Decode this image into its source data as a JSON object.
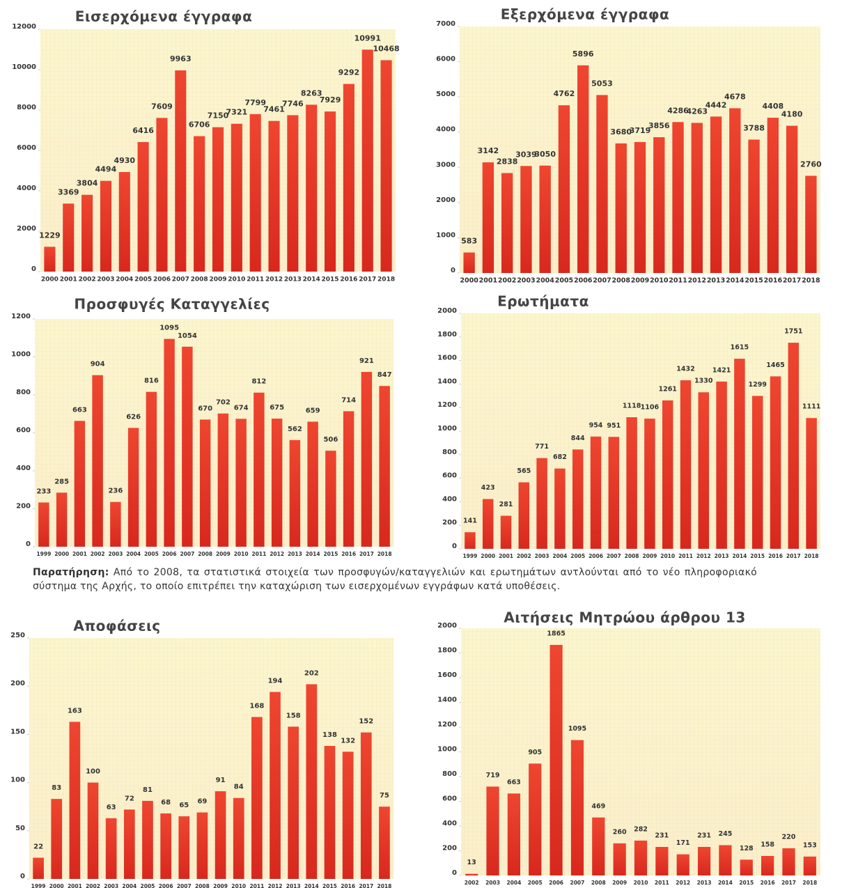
{
  "chart_data": [
    {
      "type": "bar",
      "title": "Εισερχόμενα έγγραφα",
      "color": "#e8392a",
      "categories": [
        "2000",
        "2001",
        "2002",
        "2003",
        "2004",
        "2005",
        "2006",
        "2007",
        "2008",
        "2009",
        "2010",
        "2011",
        "2012",
        "2013",
        "2014",
        "2015",
        "2016",
        "2017",
        "2018"
      ],
      "values": [
        1229,
        3369,
        3804,
        4494,
        4930,
        6416,
        7609,
        9963,
        6706,
        7150,
        7321,
        7799,
        7461,
        7746,
        8263,
        7929,
        9292,
        10991,
        10468
      ],
      "ylim": [
        0,
        12000
      ],
      "yticks": [
        0,
        2000,
        4000,
        6000,
        8000,
        10000,
        12000
      ]
    },
    {
      "type": "bar",
      "title": "Εξερχόμενα έγγραφα",
      "color": "#e8392a",
      "categories": [
        "2000",
        "2001",
        "2002",
        "2003",
        "2004",
        "2005",
        "2006",
        "2007",
        "2008",
        "2009",
        "2010",
        "2011",
        "2012",
        "2013",
        "2014",
        "2015",
        "2016",
        "2017",
        "2018"
      ],
      "values": [
        583,
        3142,
        2838,
        3039,
        3050,
        4762,
        5896,
        5053,
        3680,
        3719,
        3856,
        4286,
        4263,
        4442,
        4678,
        3788,
        4408,
        4180,
        2760
      ],
      "ylim": [
        0,
        7000
      ],
      "yticks": [
        0,
        1000,
        2000,
        3000,
        4000,
        5000,
        6000,
        7000
      ]
    },
    {
      "type": "bar",
      "title": "Προσφυγές Καταγγελίες",
      "color": "#e8392a",
      "categories": [
        "1999",
        "2000",
        "2001",
        "2002",
        "2003",
        "2004",
        "2005",
        "2006",
        "2007",
        "2008",
        "2009",
        "2010",
        "2011",
        "2012",
        "2013",
        "2014",
        "2015",
        "2016",
        "2017",
        "2018"
      ],
      "values": [
        233,
        285,
        663,
        904,
        236,
        626,
        816,
        1095,
        1054,
        670,
        702,
        674,
        812,
        675,
        562,
        659,
        506,
        714,
        921,
        847
      ],
      "ylim": [
        0,
        1200
      ],
      "yticks": [
        0,
        200,
        400,
        600,
        800,
        1000,
        1200
      ]
    },
    {
      "type": "bar",
      "title": "Ερωτήματα",
      "color": "#e8392a",
      "categories": [
        "1999",
        "2000",
        "2001",
        "2002",
        "2003",
        "2004",
        "2005",
        "2006",
        "2007",
        "2008",
        "2009",
        "2010",
        "2011",
        "2012",
        "2013",
        "2014",
        "2015",
        "2016",
        "2017",
        "2018"
      ],
      "values": [
        141,
        423,
        281,
        565,
        771,
        682,
        844,
        954,
        951,
        1118,
        1106,
        1261,
        1432,
        1330,
        1421,
        1615,
        1299,
        1465,
        1751,
        1111
      ],
      "ylim": [
        0,
        2000
      ],
      "yticks": [
        0,
        200,
        400,
        600,
        800,
        1000,
        1200,
        1400,
        1600,
        1800,
        2000
      ]
    },
    {
      "type": "bar",
      "title": "Αποφάσεις",
      "color": "#e8392a",
      "categories": [
        "1999",
        "2000",
        "2001",
        "2002",
        "2003",
        "2004",
        "2005",
        "2006",
        "2007",
        "2008",
        "2009",
        "2010",
        "2011",
        "2012",
        "2013",
        "2014",
        "2015",
        "2016",
        "2017",
        "2018"
      ],
      "values": [
        22,
        83,
        163,
        100,
        63,
        72,
        81,
        68,
        65,
        69,
        91,
        84,
        168,
        194,
        158,
        202,
        138,
        132,
        152,
        75
      ],
      "ylim": [
        0,
        250
      ],
      "yticks": [
        0,
        50,
        100,
        150,
        200,
        250
      ]
    },
    {
      "type": "bar",
      "title": "Αιτήσεις Μητρώου άρθρου 13",
      "color": "#e8392a",
      "categories": [
        "2002",
        "2003",
        "2004",
        "2005",
        "2006",
        "2007",
        "2008",
        "2009",
        "2010",
        "2011",
        "2012",
        "2013",
        "2014",
        "2015",
        "2016",
        "2017",
        "2018"
      ],
      "values": [
        13,
        719,
        663,
        905,
        1865,
        1095,
        469,
        260,
        282,
        231,
        171,
        231,
        245,
        128,
        158,
        220,
        153
      ],
      "ylim": [
        0,
        2000
      ],
      "yticks": [
        0,
        200,
        400,
        600,
        800,
        1000,
        1200,
        1400,
        1600,
        1800,
        2000
      ]
    }
  ],
  "note": {
    "label": "Παρατήρηση:",
    "text": "Από το 2008, τα στατιστικά στοιχεία των προσφυγών/καταγγελιών και ερωτημάτων αντλούνται από το νέο πληροφοριακό σύστημα της Αρχής, το οποίο επιτρέπει την καταχώριση των εισερχομένων εγγράφων κατά υποθέσεις."
  }
}
